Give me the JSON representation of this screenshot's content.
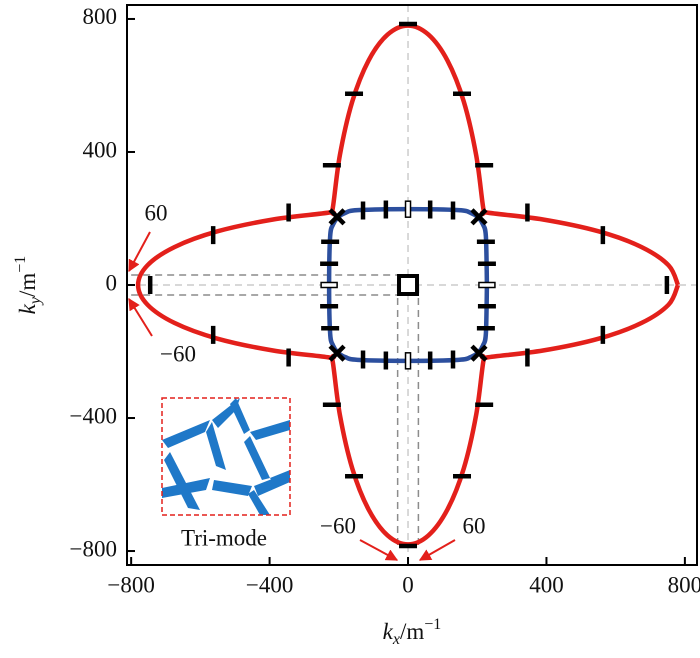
{
  "chart_data": {
    "type": "contour",
    "xlabel": {
      "symbol": "k",
      "subscript": "x",
      "unit": "/m",
      "exponent": "−1"
    },
    "ylabel": {
      "symbol": "k",
      "subscript": "y",
      "unit": "/m",
      "exponent": "−1"
    },
    "xlim": [
      -812,
      835
    ],
    "ylim": [
      -842,
      842
    ],
    "xticks": [
      {
        "value": -800,
        "label": "−800"
      },
      {
        "value": -400,
        "label": "−400"
      },
      0,
      400,
      800
    ],
    "yticks": [
      {
        "value": -800,
        "label": "−800"
      },
      {
        "value": -400,
        "label": "−400"
      },
      0,
      400,
      800
    ],
    "zero_lines": true,
    "series": [
      {
        "color": "#e3201b",
        "x": [
          780,
          753,
          675,
          552,
          390,
          228,
          218,
          197,
          161,
          114,
          59,
          0,
          -59,
          -114,
          -161,
          -197,
          -218,
          -228,
          -390,
          -552,
          -675,
          -753,
          -780,
          -753,
          -675,
          -552,
          -390,
          -228,
          -218,
          -197,
          -161,
          -114,
          -59,
          0,
          59,
          114,
          161,
          197,
          218,
          228,
          390,
          552,
          675,
          753,
          780
        ],
        "values": [
          0,
          59,
          114,
          161,
          197,
          218,
          228,
          390,
          552,
          675,
          753,
          780,
          753,
          675,
          552,
          390,
          228,
          218,
          197,
          161,
          114,
          59,
          0,
          -59,
          -114,
          -161,
          -197,
          -218,
          -228,
          -390,
          -552,
          -675,
          -753,
          -780,
          -753,
          -675,
          -552,
          -390,
          -228,
          -218,
          -197,
          -161,
          -114,
          -59,
          0
        ]
      },
      {
        "color": "#2c4f9e",
        "x": [
          228,
          225,
          217,
          203,
          181,
          146,
          0,
          -146,
          -181,
          -203,
          -217,
          -225,
          -228,
          -225,
          -217,
          -203,
          -181,
          -146,
          0,
          146,
          181,
          203,
          217,
          225,
          228
        ],
        "values": [
          0,
          146,
          181,
          203,
          217,
          225,
          228,
          225,
          217,
          203,
          181,
          146,
          0,
          -146,
          -181,
          -203,
          -217,
          -225,
          -228,
          -225,
          -217,
          -203,
          -181,
          -146,
          0
        ]
      }
    ],
    "markers": [
      {
        "style": "vbar",
        "x": [
          748,
          -745,
          563,
          563,
          -563,
          -563,
          345,
          345,
          -345,
          -345,
          64,
          -64,
          64,
          -64,
          130,
          -130,
          130,
          -130
        ],
        "y": [
          0,
          0,
          150,
          -150,
          150,
          -150,
          218,
          -218,
          218,
          -218,
          227,
          227,
          -227,
          -227,
          224,
          224,
          -224,
          -224
        ]
      },
      {
        "style": "hbar",
        "x": [
          0,
          0,
          156,
          -156,
          156,
          -156,
          220,
          -220,
          220,
          -220,
          228,
          228,
          -228,
          -228,
          225,
          225,
          -225,
          -225
        ],
        "y": [
          785,
          -785,
          575,
          575,
          -575,
          -575,
          360,
          360,
          -360,
          -360,
          64,
          -64,
          64,
          -64,
          130,
          -130,
          130,
          -130
        ]
      },
      {
        "style": "cross",
        "x": [
          205,
          -205,
          205,
          -205
        ],
        "y": [
          205,
          205,
          -205,
          -205
        ]
      },
      {
        "style": "vbar-open",
        "x": [
          0,
          0
        ],
        "y": [
          228,
          -228
        ]
      },
      {
        "style": "hbar-open",
        "x": [
          228,
          -228
        ],
        "y": [
          0,
          0
        ]
      },
      {
        "style": "square",
        "x": [
          0
        ],
        "y": [
          0
        ]
      }
    ],
    "reference_lines": {
      "color": "#8c8c8c",
      "lines": [
        {
          "x": [
            -30,
            -30
          ],
          "y": [
            -782,
            0
          ]
        },
        {
          "x": [
            30,
            30
          ],
          "y": [
            -782,
            0
          ]
        },
        {
          "x": [
            -800,
            0
          ],
          "y": [
            30,
            30
          ]
        },
        {
          "x": [
            -800,
            0
          ],
          "y": [
            -30,
            -30
          ]
        }
      ]
    },
    "annotations": [
      "60",
      "−60",
      "−60",
      "60"
    ],
    "inset_label": "Tri-mode"
  }
}
